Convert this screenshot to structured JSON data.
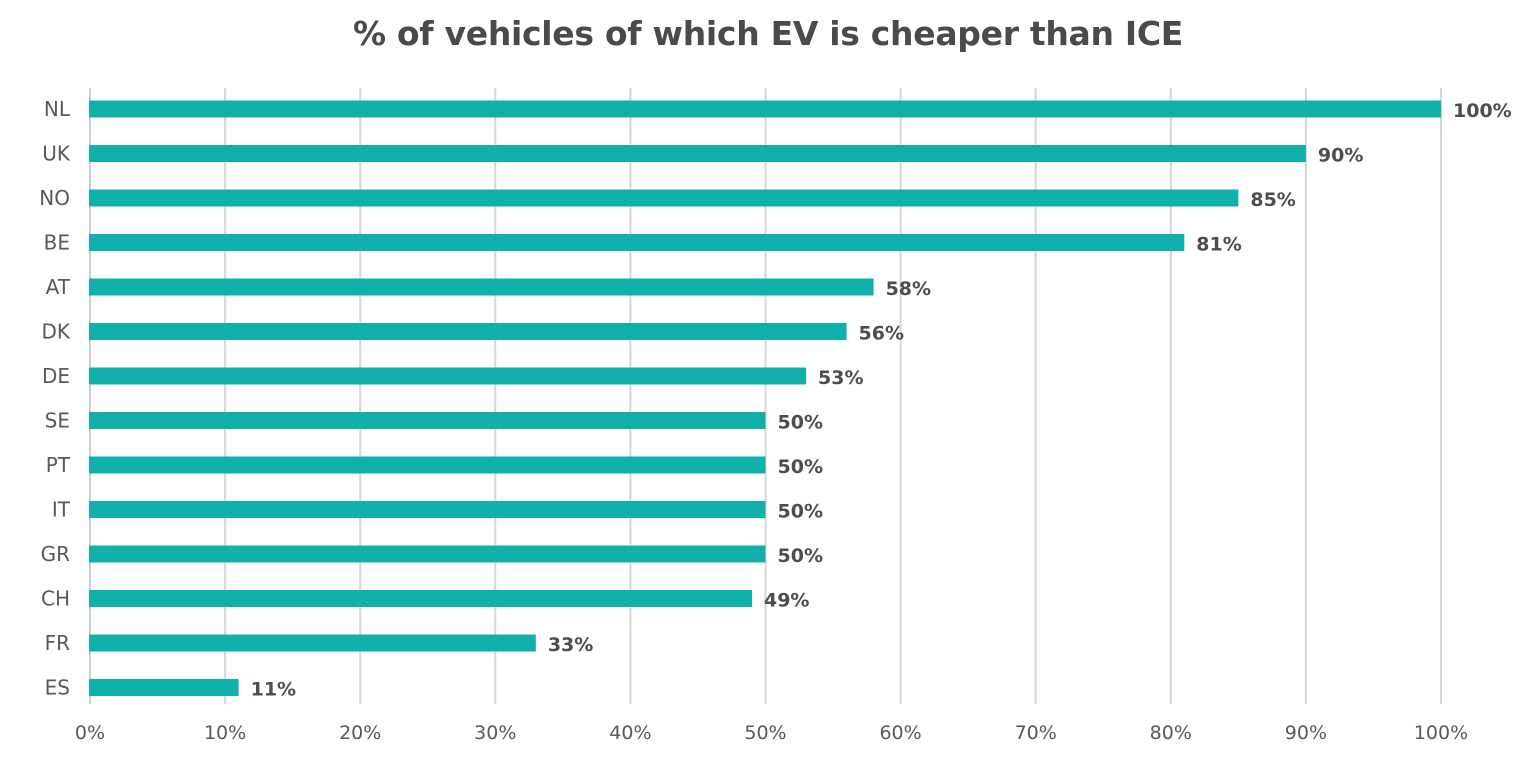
{
  "chart_data": {
    "type": "bar",
    "orientation": "horizontal",
    "title": "% of vehicles of which EV is cheaper than ICE",
    "xlabel": "",
    "ylabel": "",
    "categories": [
      "NL",
      "UK",
      "NO",
      "BE",
      "AT",
      "DK",
      "DE",
      "SE",
      "PT",
      "IT",
      "GR",
      "CH",
      "FR",
      "ES"
    ],
    "values": [
      100,
      90,
      85,
      81,
      58,
      56,
      53,
      50,
      50,
      50,
      50,
      49,
      33,
      11
    ],
    "value_labels": [
      "100%",
      "90%",
      "85%",
      "81%",
      "58%",
      "56%",
      "53%",
      "50%",
      "50%",
      "50%",
      "50%",
      "49%",
      "33%",
      "11%"
    ],
    "xlim": [
      0,
      100
    ],
    "x_ticks": [
      0,
      10,
      20,
      30,
      40,
      50,
      60,
      70,
      80,
      90,
      100
    ],
    "x_tick_labels": [
      "0%",
      "10%",
      "20%",
      "30%",
      "40%",
      "50%",
      "60%",
      "70%",
      "80%",
      "90%",
      "100%"
    ],
    "grid": "vertical",
    "legend": "none",
    "colors": {
      "bar": "#12b0ab",
      "title": "#4a4a4a",
      "text": "#595959",
      "grid": "#d6d6d6"
    }
  }
}
